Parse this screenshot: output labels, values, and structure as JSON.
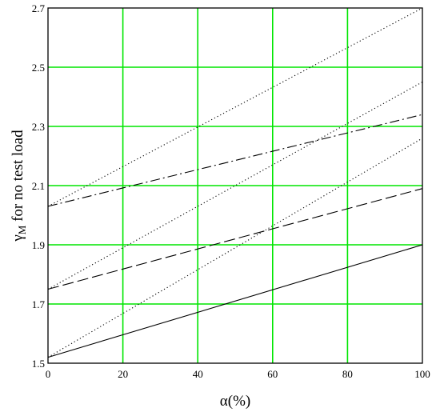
{
  "chart_data": {
    "type": "line",
    "title": "",
    "xlabel": "α(%)",
    "ylabel": "γM for no test load",
    "ylabel_main": "γ",
    "ylabel_sub": "M",
    "ylabel_rest": " for no test load",
    "xlim": [
      0,
      100
    ],
    "ylim": [
      1.5,
      2.7
    ],
    "x_ticks": [
      0,
      20,
      40,
      60,
      80,
      100
    ],
    "x_tick_labels": [
      "0",
      "20",
      "40",
      "60",
      "80",
      "100"
    ],
    "y_ticks": [
      1.5,
      1.7,
      1.9,
      2.1,
      2.3,
      2.5,
      2.7
    ],
    "y_tick_labels": [
      "1.5",
      "1.7",
      "1.9",
      "2.1",
      "2.3",
      "2.5",
      "2.7"
    ],
    "grid": true,
    "grid_color": "#00e600",
    "series": [
      {
        "style": "solid",
        "x": [
          0,
          100
        ],
        "y": [
          1.52,
          1.9
        ]
      },
      {
        "style": "dotted",
        "x": [
          0,
          100
        ],
        "y": [
          1.52,
          2.26
        ]
      },
      {
        "style": "dashed",
        "x": [
          0,
          100
        ],
        "y": [
          1.75,
          2.09
        ]
      },
      {
        "style": "dotted",
        "x": [
          0,
          100
        ],
        "y": [
          1.75,
          2.45
        ]
      },
      {
        "style": "dash-dot",
        "x": [
          0,
          100
        ],
        "y": [
          2.03,
          2.34
        ]
      },
      {
        "style": "dotted",
        "x": [
          0,
          100
        ],
        "y": [
          2.03,
          2.7
        ]
      }
    ]
  }
}
